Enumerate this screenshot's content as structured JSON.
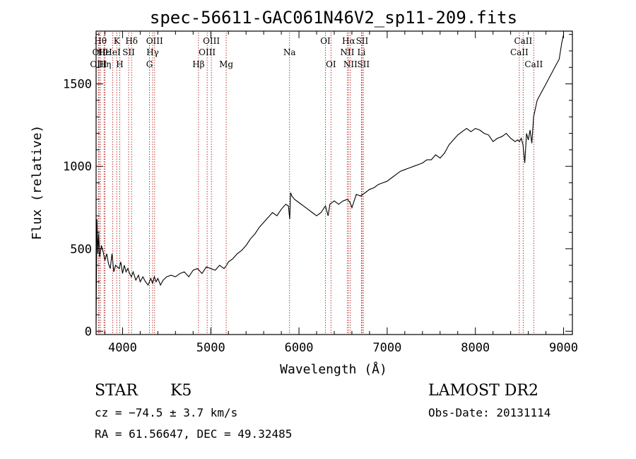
{
  "chart_data": {
    "type": "line",
    "title": "spec-56611-GAC061N46V2_sp11-209.fits",
    "xlabel": "Wavelength (Å)",
    "ylabel": "Flux (relative)",
    "xlim": [
      3700,
      9100
    ],
    "ylim": [
      -20,
      1820
    ],
    "x_ticks": [
      4000,
      5000,
      6000,
      7000,
      8000,
      9000
    ],
    "x_tick_labels": [
      "4000",
      "5000",
      "6000",
      "7000",
      "8000",
      "9000"
    ],
    "y_ticks": [
      0,
      500,
      1000,
      1500
    ],
    "y_tick_labels": [
      "0",
      "500",
      "1000",
      "1500"
    ],
    "grid": false,
    "series": [
      {
        "x": [
          3700,
          3710,
          3720,
          3730,
          3740,
          3760,
          3780,
          3800,
          3820,
          3840,
          3860,
          3880,
          3900,
          3920,
          3940,
          3960,
          3980,
          4000,
          4020,
          4040,
          4060,
          4080,
          4100,
          4120,
          4150,
          4180,
          4200,
          4230,
          4260,
          4290,
          4320,
          4340,
          4360,
          4380,
          4400,
          4430,
          4460,
          4500,
          4550,
          4600,
          4650,
          4700,
          4750,
          4800,
          4850,
          4900,
          4950,
          5000,
          5050,
          5100,
          5150,
          5180,
          5200,
          5250,
          5300,
          5350,
          5400,
          5450,
          5500,
          5550,
          5600,
          5650,
          5700,
          5750,
          5800,
          5850,
          5880,
          5895,
          5905,
          5920,
          5950,
          6000,
          6050,
          6100,
          6150,
          6200,
          6250,
          6300,
          6330,
          6350,
          6400,
          6450,
          6500,
          6550,
          6580,
          6600,
          6650,
          6700,
          6750,
          6800,
          6850,
          6900,
          6950,
          7000,
          7050,
          7100,
          7150,
          7200,
          7250,
          7300,
          7350,
          7400,
          7450,
          7500,
          7550,
          7600,
          7650,
          7700,
          7750,
          7800,
          7850,
          7900,
          7950,
          8000,
          8050,
          8100,
          8150,
          8200,
          8250,
          8300,
          8350,
          8400,
          8450,
          8480,
          8500,
          8520,
          8540,
          8560,
          8580,
          8600,
          8620,
          8640,
          8660,
          8680,
          8700,
          8750,
          8800,
          8850,
          8900,
          8950,
          8980,
          9000
        ],
        "y": [
          50,
          680,
          470,
          590,
          450,
          520,
          480,
          430,
          470,
          410,
          380,
          470,
          360,
          400,
          390,
          380,
          420,
          350,
          400,
          360,
          380,
          350,
          330,
          360,
          310,
          340,
          300,
          330,
          300,
          280,
          320,
          290,
          330,
          300,
          320,
          280,
          310,
          330,
          340,
          330,
          350,
          360,
          330,
          370,
          380,
          350,
          390,
          380,
          370,
          400,
          380,
          400,
          420,
          440,
          470,
          490,
          520,
          560,
          590,
          630,
          660,
          690,
          720,
          700,
          740,
          770,
          760,
          680,
          840,
          820,
          800,
          780,
          760,
          740,
          720,
          700,
          720,
          760,
          700,
          770,
          790,
          770,
          790,
          800,
          780,
          750,
          830,
          820,
          840,
          860,
          870,
          890,
          900,
          910,
          930,
          950,
          970,
          980,
          990,
          1000,
          1010,
          1020,
          1040,
          1040,
          1070,
          1050,
          1080,
          1130,
          1160,
          1190,
          1210,
          1230,
          1210,
          1230,
          1220,
          1200,
          1190,
          1150,
          1170,
          1180,
          1200,
          1170,
          1150,
          1160,
          1150,
          1170,
          1130,
          1020,
          1200,
          1160,
          1220,
          1140,
          1300,
          1350,
          1400,
          1450,
          1500,
          1550,
          1600,
          1650,
          1750,
          1800
        ]
      }
    ],
    "line_markers": [
      {
        "x": 3750,
        "label": "Hθ",
        "row": 0
      },
      {
        "x": 3734,
        "label": "OII",
        "row": 1
      },
      {
        "x": 3727,
        "label": "OIII",
        "row": 2
      },
      {
        "x": 3790,
        "label": "Hε",
        "row": 1
      },
      {
        "x": 3800,
        "label": "Hη",
        "row": 2
      },
      {
        "x": 3889,
        "label": "HeI",
        "row": 1
      },
      {
        "x": 3934,
        "label": "K",
        "row": 0
      },
      {
        "x": 3968,
        "label": "H",
        "row": 2
      },
      {
        "x": 4069,
        "label": "SII",
        "row": 1
      },
      {
        "x": 4102,
        "label": "Hδ",
        "row": 0
      },
      {
        "x": 4305,
        "label": "G",
        "row": 2
      },
      {
        "x": 4341,
        "label": "Hγ",
        "row": 1
      },
      {
        "x": 4363,
        "label": "OIII",
        "row": 0
      },
      {
        "x": 4861,
        "label": "Hβ",
        "row": 2
      },
      {
        "x": 4959,
        "label": "OIII",
        "row": 1
      },
      {
        "x": 5007,
        "label": "OIII",
        "row": 0
      },
      {
        "x": 5175,
        "label": "Mg",
        "row": 2
      },
      {
        "x": 5893,
        "label": "Na",
        "row": 1
      },
      {
        "x": 6300,
        "label": "OI",
        "row": 0
      },
      {
        "x": 6363,
        "label": "OI",
        "row": 2
      },
      {
        "x": 6548,
        "label": "NII",
        "row": 1
      },
      {
        "x": 6563,
        "label": "Hα",
        "row": 0
      },
      {
        "x": 6583,
        "label": "NII",
        "row": 2
      },
      {
        "x": 6708,
        "label": "Li",
        "row": 1
      },
      {
        "x": 6716,
        "label": "SII",
        "row": 0
      },
      {
        "x": 6731,
        "label": "SII",
        "row": 2
      },
      {
        "x": 8498,
        "label": "CaII",
        "row": 1
      },
      {
        "x": 8542,
        "label": "CaII",
        "row": 0
      },
      {
        "x": 8662,
        "label": "CaII",
        "row": 2
      }
    ]
  },
  "info": {
    "object_class": "STAR",
    "subclass": "K5",
    "survey": "LAMOST DR2",
    "cz": "cz = −74.5 ± 3.7 km/s",
    "obs_date": "Obs-Date: 20131114",
    "coords": "RA =  61.56647, DEC =  49.32485"
  },
  "colors": {
    "spectrum": "#000000",
    "line_markers": "#b22222",
    "axes": "#000000"
  }
}
